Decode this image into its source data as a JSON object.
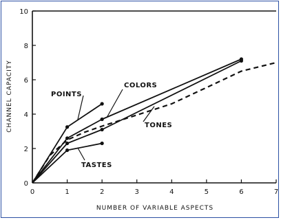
{
  "chart_data": {
    "type": "line",
    "xlabel": "NUMBER OF VARIABLE ASPECTS",
    "ylabel": "CHANNEL CAPACITY",
    "xlim": [
      0,
      7
    ],
    "ylim": [
      0,
      10
    ],
    "x_ticks": [
      "0",
      "1",
      "2",
      "3",
      "4",
      "5",
      "6",
      "7"
    ],
    "y_ticks": [
      "0",
      "2",
      "4",
      "6",
      "8",
      "10"
    ],
    "grid": false,
    "series": [
      {
        "name": "POINTS",
        "style": "solid",
        "points": [
          [
            0,
            0
          ],
          [
            1,
            3.25
          ],
          [
            2,
            4.6
          ]
        ]
      },
      {
        "name": "COLORS",
        "style": "solid",
        "points": [
          [
            0,
            0
          ],
          [
            1,
            2.6
          ],
          [
            2,
            3.7
          ],
          [
            6,
            7.2
          ]
        ]
      },
      {
        "name": "TONES",
        "style": "solid",
        "points": [
          [
            0,
            0
          ],
          [
            1,
            2.3
          ],
          [
            2,
            3.1
          ],
          [
            6,
            7.1
          ]
        ]
      },
      {
        "name": "TASTES",
        "style": "solid",
        "points": [
          [
            0,
            0
          ],
          [
            1,
            1.9
          ],
          [
            2,
            2.3
          ]
        ]
      },
      {
        "name": "",
        "style": "dashed",
        "points": [
          [
            0,
            0
          ],
          [
            0.5,
            1.6
          ],
          [
            1,
            2.5
          ],
          [
            1.5,
            2.95
          ],
          [
            2,
            3.3
          ],
          [
            3,
            3.95
          ],
          [
            4,
            4.6
          ],
          [
            5,
            5.55
          ],
          [
            6,
            6.5
          ],
          [
            7,
            7.0
          ]
        ]
      }
    ],
    "labels": [
      {
        "text": "POINTS",
        "series": "POINTS"
      },
      {
        "text": "COLORS",
        "series": "COLORS"
      },
      {
        "text": "TONES",
        "series": "TONES"
      },
      {
        "text": "TASTES",
        "series": "TASTES"
      }
    ],
    "colors": {
      "ink": "#111111",
      "frame": "#2b4fa3"
    }
  }
}
